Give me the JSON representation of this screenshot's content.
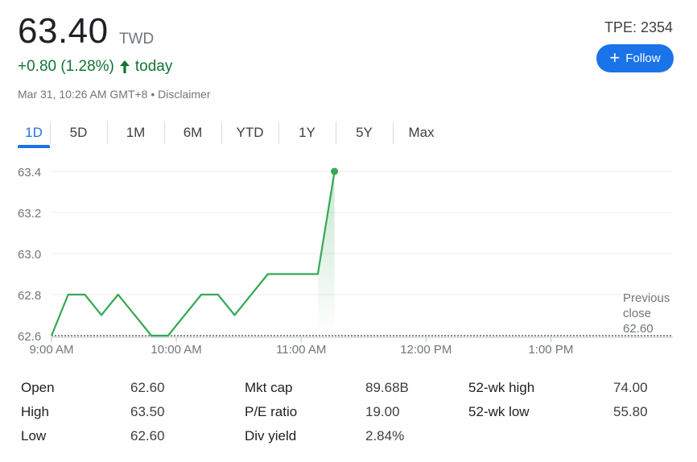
{
  "quote": {
    "price": "63.40",
    "currency": "TWD",
    "change": "+0.80 (1.28%)",
    "change_suffix": "today",
    "timestamp": "Mar 31, 10:26 AM GMT+8",
    "separator": "•",
    "disclaimer": "Disclaimer",
    "ticker": "TPE: 2354",
    "follow_label": "Follow",
    "up_color": "#137333"
  },
  "tabs": [
    {
      "label": "1D",
      "active": true
    },
    {
      "label": "5D"
    },
    {
      "label": "1M"
    },
    {
      "label": "6M"
    },
    {
      "label": "YTD"
    },
    {
      "label": "1Y"
    },
    {
      "label": "5Y"
    },
    {
      "label": "Max"
    }
  ],
  "chart_data": {
    "type": "line",
    "y_ticks": [
      "63.4",
      "63.2",
      "63.0",
      "62.8",
      "62.6"
    ],
    "ylim": [
      62.6,
      63.4
    ],
    "x_ticks": [
      "9:00 AM",
      "10:00 AM",
      "11:00 AM",
      "12:00 PM",
      "1:00 PM"
    ],
    "series": [
      {
        "minutes": [
          0,
          8,
          16,
          24,
          32,
          48,
          56,
          72,
          80,
          88,
          104,
          128,
          136
        ],
        "values": [
          62.6,
          62.8,
          62.8,
          62.7,
          62.8,
          62.6,
          62.6,
          62.8,
          62.8,
          62.7,
          62.9,
          62.9,
          63.4
        ],
        "color": "#34a853"
      }
    ],
    "previous_close_label": [
      "Previous",
      "close"
    ],
    "previous_close_value": "62.60"
  },
  "stats": [
    {
      "label": "Open",
      "value": "62.60"
    },
    {
      "label": "High",
      "value": "63.50"
    },
    {
      "label": "Low",
      "value": "62.60"
    },
    {
      "label": "Mkt cap",
      "value": "89.68B"
    },
    {
      "label": "P/E ratio",
      "value": "19.00"
    },
    {
      "label": "Div yield",
      "value": "2.84%"
    },
    {
      "label": "52-wk high",
      "value": "74.00"
    },
    {
      "label": "52-wk low",
      "value": "55.80"
    }
  ]
}
